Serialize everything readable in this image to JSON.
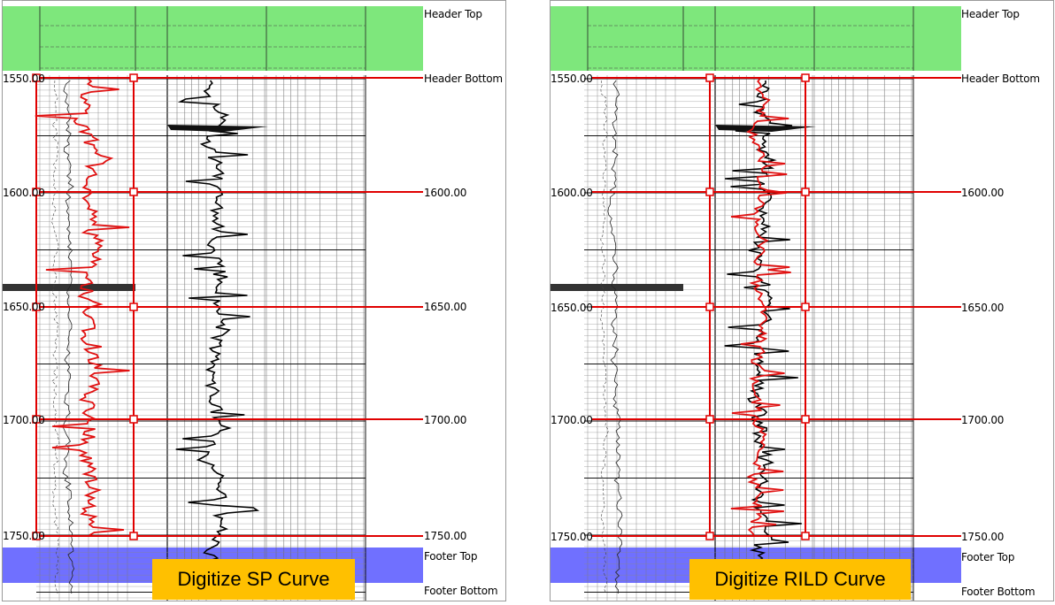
{
  "left_panel": {
    "labels": {
      "header_top": "Header Top",
      "header_bottom": "Header Bottom",
      "footer_top": "Footer Top",
      "footer_bottom": "Footer Bottom"
    },
    "depths_left": [
      "1550.00",
      "1600.00",
      "1650.00",
      "1700.00",
      "1750.00"
    ],
    "depths_right": [
      "1600.00",
      "1650.00",
      "1700.00",
      "1750.00"
    ],
    "action_label": "Digitize SP Curve"
  },
  "right_panel": {
    "labels": {
      "header_top": "Header Top",
      "header_bottom": "Header Bottom",
      "footer_top": "Footer Top",
      "footer_bottom": "Footer Bottom"
    },
    "depths_left": [
      "1550.00",
      "1600.00",
      "1650.00",
      "1700.00",
      "1750.00"
    ],
    "depths_right": [
      "1600.00",
      "1650.00",
      "1700.00",
      "1750.00"
    ],
    "action_label": "Digitize RILD Curve"
  },
  "colors": {
    "header_band": "#7ee77c",
    "footer_band": "#7070ff",
    "digitize_frame": "#e00000",
    "digitize_curve": "#e01010",
    "action_button": "#ffc000"
  }
}
